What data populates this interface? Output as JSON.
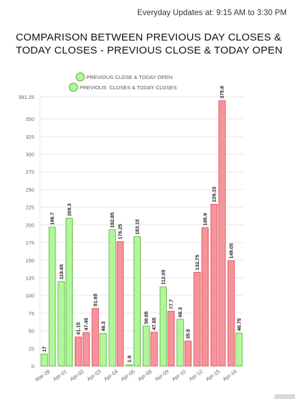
{
  "header": {
    "updates": "Everyday Updates at: 9:15 AM to 3:30 PM"
  },
  "chart_data": {
    "type": "bar",
    "title": "COMPARISON BETWEEN PREVIOUS DAY CLOSES & TODAY CLOSES - PREVIOUS CLOSE & TODAY OPEN",
    "ylim": [
      0,
      381.25
    ],
    "yticks": [
      "0",
      "25",
      "50",
      "75",
      "100",
      "125",
      "150",
      "175",
      "200",
      "225",
      "250",
      "275",
      "300",
      "325",
      "350",
      "381.25"
    ],
    "categories": [
      "Mar-28",
      "Apr-01",
      "Apr-02",
      "Apr-03",
      "Apr-04",
      "Apr-05",
      "Apr-08",
      "Apr-09",
      "Apr-10",
      "Apr-12",
      "Apr-15",
      "Apr-16"
    ],
    "grid": true,
    "legend_position": "top-center",
    "colors": {
      "positive_fill": "#b2f59a",
      "positive_stroke": "#4caf30",
      "negative_fill": "#f7939b",
      "negative_stroke": "#d9434f"
    },
    "series": [
      {
        "name": "PREVIOUS CLOSE & TODAY OPEN",
        "values": [
          17,
          119.65,
          41.15,
          81.65,
          192.85,
          1.9,
          56.65,
          112.05,
          66.3,
          132.75,
          229.15,
          149.05
        ],
        "labels": [
          "17",
          "119.65",
          "41.15",
          "81.65",
          "192.85",
          "1.9",
          "56.65",
          "112.05",
          "66.3",
          "132.75",
          "229.15",
          "149.05"
        ],
        "direction": [
          "up",
          "up",
          "down",
          "down",
          "up",
          "up",
          "up",
          "up",
          "up",
          "down",
          "down",
          "down"
        ]
      },
      {
        "name": "PREVIOUS  CLOSES & TODAY CLOSES",
        "values": [
          196.7,
          209.3,
          47.45,
          46.3,
          176.25,
          183.15,
          47.85,
          77.7,
          35.5,
          195.9,
          375.8,
          46.75
        ],
        "labels": [
          "196.7",
          "209.3",
          "47.45",
          "46.3",
          "176.25",
          "183.15",
          "47.85",
          "77.7",
          "35.5",
          "195.9",
          "375.8",
          "46.75"
        ],
        "direction": [
          "up",
          "up",
          "down",
          "up",
          "down",
          "up",
          "down",
          "down",
          "down",
          "down",
          "down",
          "up"
        ]
      }
    ]
  }
}
